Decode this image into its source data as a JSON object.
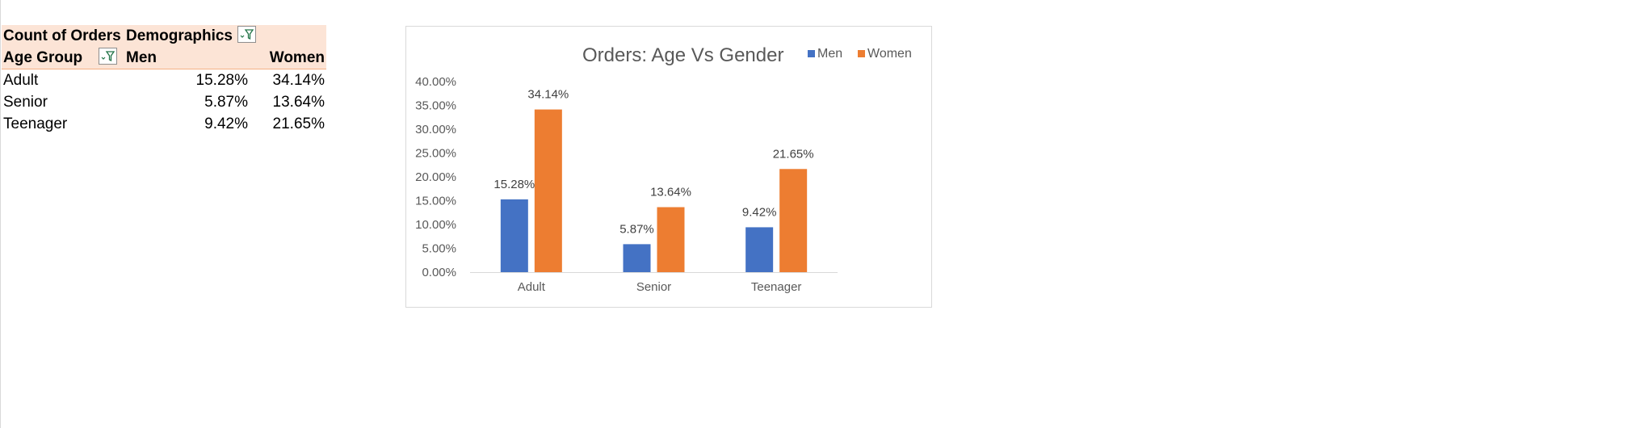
{
  "pivot": {
    "title_label": "Count of Orders",
    "columns_field": "Demographics",
    "row_field": "Age Group",
    "col_men": "Men",
    "col_women": "Women",
    "rows": [
      {
        "label": "Adult",
        "men": "15.28%",
        "women": "34.14%"
      },
      {
        "label": "Senior",
        "men": "5.87%",
        "women": "13.64%"
      },
      {
        "label": "Teenager",
        "men": "9.42%",
        "women": "21.65%"
      }
    ]
  },
  "icons": {
    "filter": "filter-dropdown-icon"
  },
  "colors": {
    "men": "#4472c4",
    "women": "#ed7d31",
    "pivot_header": "#fce4d6"
  },
  "chart_data": {
    "type": "bar",
    "title": "Orders: Age Vs Gender",
    "categories": [
      "Adult",
      "Senior",
      "Teenager"
    ],
    "series": [
      {
        "name": "Men",
        "values": [
          15.28,
          5.87,
          9.42
        ],
        "labels": [
          "15.28%",
          "5.87%",
          "9.42%"
        ]
      },
      {
        "name": "Women",
        "values": [
          34.14,
          13.64,
          21.65
        ],
        "labels": [
          "34.14%",
          "13.64%",
          "21.65%"
        ]
      }
    ],
    "ylim": [
      0,
      40
    ],
    "yticks": [
      "0.00%",
      "5.00%",
      "10.00%",
      "15.00%",
      "20.00%",
      "25.00%",
      "30.00%",
      "35.00%",
      "40.00%"
    ],
    "legend_position": "top-right",
    "grid": false
  }
}
